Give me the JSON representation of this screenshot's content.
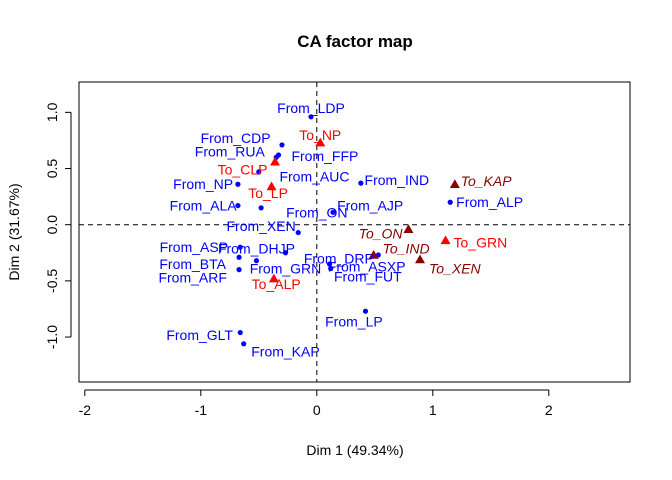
{
  "chart_data": {
    "type": "scatter",
    "title": "CA factor map",
    "xlabel": "Dim 1 (49.34%)",
    "ylabel": "Dim 2 (31.67%)",
    "xlim": [
      -2.05,
      2.7
    ],
    "ylim": [
      -1.4,
      1.27
    ],
    "x_ticks": [
      -2,
      -1,
      0,
      1,
      2
    ],
    "x_tick_labels": [
      "-2",
      "-1",
      "0",
      "1",
      "2"
    ],
    "y_ticks": [
      -1.0,
      -0.5,
      0.0,
      0.5,
      1.0
    ],
    "y_tick_labels": [
      "-1.0",
      "-0.5",
      "0.0",
      "0.5",
      "1.0"
    ],
    "grid": false,
    "reference_lines": {
      "x": 0,
      "y": 0,
      "style": "dashed"
    },
    "colors": {
      "from": "#0000ff",
      "to_active": "#ff0000",
      "to_sup": "#8b0000"
    },
    "series": [
      {
        "marker": "circle",
        "color": "#0000ff",
        "label_style": "normal",
        "points": [
          {
            "label": "From_LDP",
            "x": -0.05,
            "y": 0.96,
            "dx": 0,
            "dy": 0.08
          },
          {
            "label": "From_CDP",
            "x": -0.3,
            "y": 0.71,
            "dx": -0.4,
            "dy": 0.06
          },
          {
            "label": "From_RUA",
            "x": -0.35,
            "y": 0.6,
            "dx": -0.4,
            "dy": 0.05
          },
          {
            "label": "From_FFP",
            "x": -0.33,
            "y": 0.62,
            "dx": 0.4,
            "dy": -0.01
          },
          {
            "label": "From_AUC",
            "x": -0.5,
            "y": 0.47,
            "dx": 0.48,
            "dy": -0.04
          },
          {
            "label": "From_NP",
            "x": -0.68,
            "y": 0.36,
            "dx": -0.3,
            "dy": 0.0
          },
          {
            "label": "From_ALA",
            "x": -0.68,
            "y": 0.17,
            "dx": -0.3,
            "dy": 0.0
          },
          {
            "label": "From_ON",
            "x": -0.48,
            "y": 0.15,
            "dx": 0.48,
            "dy": -0.04
          },
          {
            "label": "From_XEN",
            "x": -0.16,
            "y": -0.07,
            "dx": -0.32,
            "dy": 0.06
          },
          {
            "label": "From_IND",
            "x": 0.38,
            "y": 0.37,
            "dx": 0.31,
            "dy": 0.03
          },
          {
            "label": "From_AJP",
            "x": 0.14,
            "y": 0.11,
            "dx": 0.32,
            "dy": 0.06
          },
          {
            "label": "From_ALP",
            "x": 1.15,
            "y": 0.2,
            "dx": 0.34,
            "dy": 0.0
          },
          {
            "label": "From_ASP",
            "x": -0.66,
            "y": -0.2,
            "dx": -0.4,
            "dy": 0.0
          },
          {
            "label": "From_DHJP",
            "x": -0.27,
            "y": -0.25,
            "dx": -0.25,
            "dy": 0.04
          },
          {
            "label": "From_DRP",
            "x": 0.11,
            "y": -0.35,
            "dx": 0.08,
            "dy": 0.05
          },
          {
            "label": "From_ASXP",
            "x": 0.53,
            "y": -0.27,
            "dx": -0.1,
            "dy": -0.1
          },
          {
            "label": "From_BTA",
            "x": -0.67,
            "y": -0.29,
            "dx": -0.4,
            "dy": -0.06
          },
          {
            "label": "From_GRN",
            "x": -0.52,
            "y": -0.32,
            "dx": 0.25,
            "dy": -0.07
          },
          {
            "label": "From_ARF",
            "x": -0.67,
            "y": -0.4,
            "dx": -0.4,
            "dy": -0.07
          },
          {
            "label": "From_FUT",
            "x": 0.12,
            "y": -0.39,
            "dx": 0.32,
            "dy": -0.07
          },
          {
            "label": "From_LP",
            "x": 0.42,
            "y": -0.77,
            "dx": -0.1,
            "dy": -0.09
          },
          {
            "label": "From_GLT",
            "x": -0.66,
            "y": -0.96,
            "dx": -0.35,
            "dy": -0.02
          },
          {
            "label": "From_KAP",
            "x": -0.63,
            "y": -1.06,
            "dx": 0.36,
            "dy": -0.07
          }
        ]
      },
      {
        "marker": "triangle",
        "color": "#ff0000",
        "label_style": "normal",
        "points": [
          {
            "label": "To_NP",
            "x": 0.03,
            "y": 0.73,
            "dx": 0,
            "dy": 0.07
          },
          {
            "label": "To_CLP",
            "x": -0.36,
            "y": 0.56,
            "dx": -0.28,
            "dy": -0.07
          },
          {
            "label": "To_LP",
            "x": -0.39,
            "y": 0.34,
            "dx": -0.03,
            "dy": -0.06
          },
          {
            "label": "To_GRN",
            "x": 1.11,
            "y": -0.14,
            "dx": 0.3,
            "dy": -0.02
          },
          {
            "label": "To_ALP",
            "x": -0.37,
            "y": -0.48,
            "dx": 0.02,
            "dy": -0.05
          }
        ]
      },
      {
        "marker": "triangle",
        "color": "#8b0000",
        "label_style": "italic",
        "points": [
          {
            "label": "To_KAP",
            "x": 1.19,
            "y": 0.36,
            "dx": 0.27,
            "dy": 0.03
          },
          {
            "label": "To_ON",
            "x": 0.79,
            "y": -0.04,
            "dx": -0.24,
            "dy": -0.04
          },
          {
            "label": "To_IND",
            "x": 0.49,
            "y": -0.27,
            "dx": 0.28,
            "dy": 0.06
          },
          {
            "label": "To_XEN",
            "x": 0.89,
            "y": -0.31,
            "dx": 0.3,
            "dy": -0.08
          }
        ]
      }
    ]
  }
}
